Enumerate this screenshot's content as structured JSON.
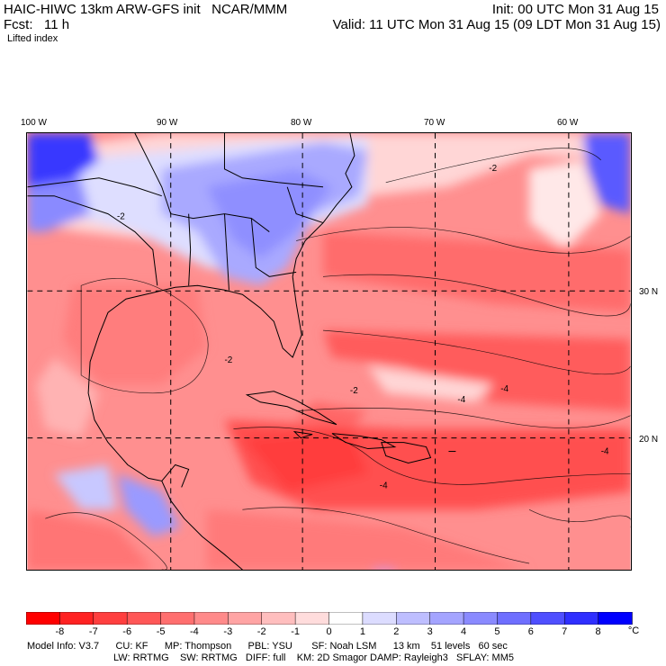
{
  "header": {
    "title_left": "HAIC-HIWC 13km ARW-GFS init   NCAR/MMM",
    "fcst": "Fcst:   11 h",
    "field": "Lifted index",
    "init": "Init: 00 UTC Mon 31 Aug 15",
    "valid": "Valid: 11 UTC Mon 31 Aug 15 (09 LDT Mon 31 Aug 15)"
  },
  "map": {
    "lon_labels": [
      {
        "text": "100 W",
        "lon": -100
      },
      {
        "text": "90 W",
        "lon": -90
      },
      {
        "text": "80 W",
        "lon": -80
      },
      {
        "text": "70 W",
        "lon": -70
      },
      {
        "text": "60 W",
        "lon": -60
      }
    ],
    "lat_labels": [
      {
        "text": "30 N",
        "lat": 30
      },
      {
        "text": "20 N",
        "lat": 20
      }
    ],
    "contour_labels": [
      "-2",
      "-4",
      "-2",
      "-4",
      "-2",
      "-4",
      "-4",
      "-2"
    ]
  },
  "colorbar": {
    "labels": [
      "-8",
      "-7",
      "-6",
      "-5",
      "-4",
      "-3",
      "-2",
      "-1",
      "0",
      "1",
      "2",
      "3",
      "4",
      "5",
      "6",
      "7",
      "8"
    ],
    "unit": "°C",
    "colors": [
      "#ff0000",
      "#ff2222",
      "#ff3f3f",
      "#ff5757",
      "#ff6f6f",
      "#ff8a8a",
      "#ffa4a4",
      "#ffbebe",
      "#ffdcdc",
      "#ffffff",
      "#dcdcff",
      "#bebeff",
      "#a4a4ff",
      "#8a8aff",
      "#6f6fff",
      "#4f4fff",
      "#2f2fff",
      "#0000ff"
    ]
  },
  "model_info": {
    "line1": "Model Info: V3.7      CU: KF      MP: Thompson      PBL: YSU       SF: Noah LSM      13 km    51 levels   60 sec",
    "line2": "LW: RRTMG    SW: RRTMG   DIFF: full    KM: 2D Smagor DAMP: Rayleigh3   SFLAY: MM5"
  }
}
